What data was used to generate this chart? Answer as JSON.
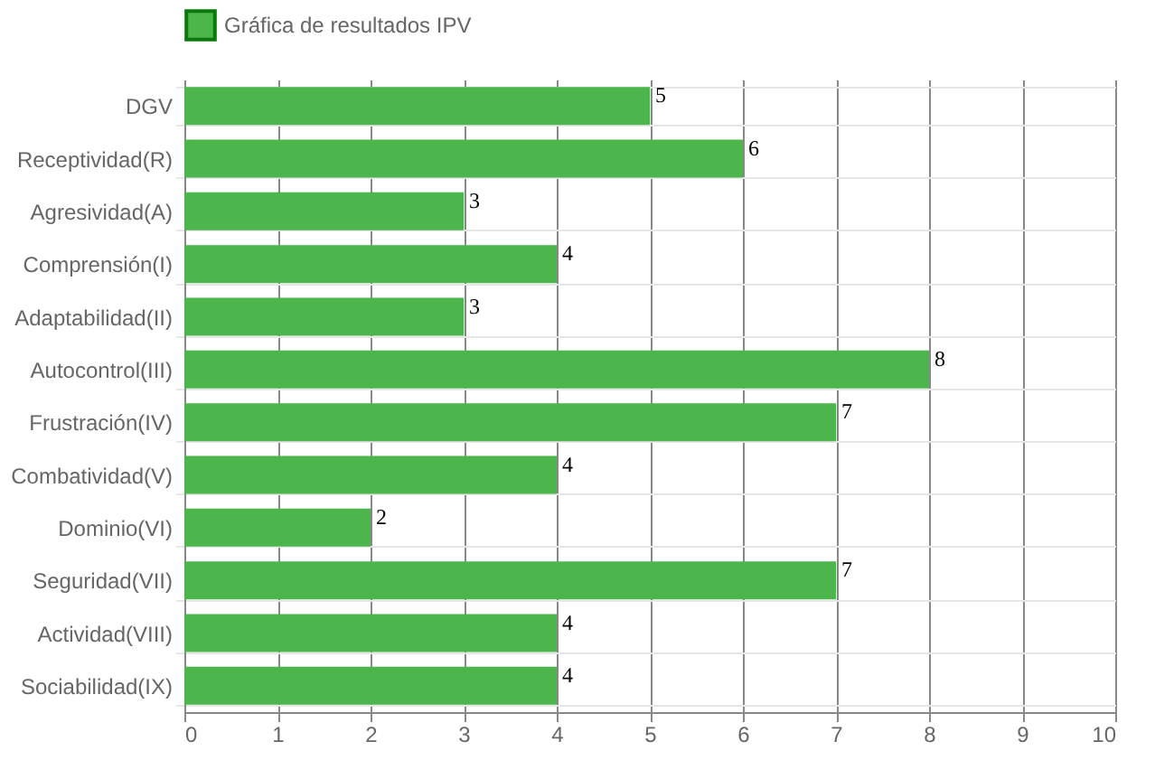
{
  "chart_data": {
    "type": "bar",
    "orientation": "horizontal",
    "categories": [
      "DGV",
      "Receptividad(R)",
      "Agresividad(A)",
      "Comprensión(I)",
      "Adaptabilidad(II)",
      "Autocontrol(III)",
      "Frustración(IV)",
      "Combatividad(V)",
      "Dominio(VI)",
      "Seguridad(VII)",
      "Actividad(VIII)",
      "Sociabilidad(IX)"
    ],
    "series": [
      {
        "name": "Gráfica de resultados IPV",
        "color": "#4cb54c",
        "values": [
          5,
          6,
          3,
          4,
          3,
          8,
          7,
          4,
          2,
          7,
          4,
          4
        ]
      }
    ],
    "xlim": [
      0,
      10
    ],
    "xticks": [
      0,
      1,
      2,
      3,
      4,
      5,
      6,
      7,
      8,
      9,
      10
    ],
    "grid": true,
    "legend": "top",
    "data_labels": true
  }
}
